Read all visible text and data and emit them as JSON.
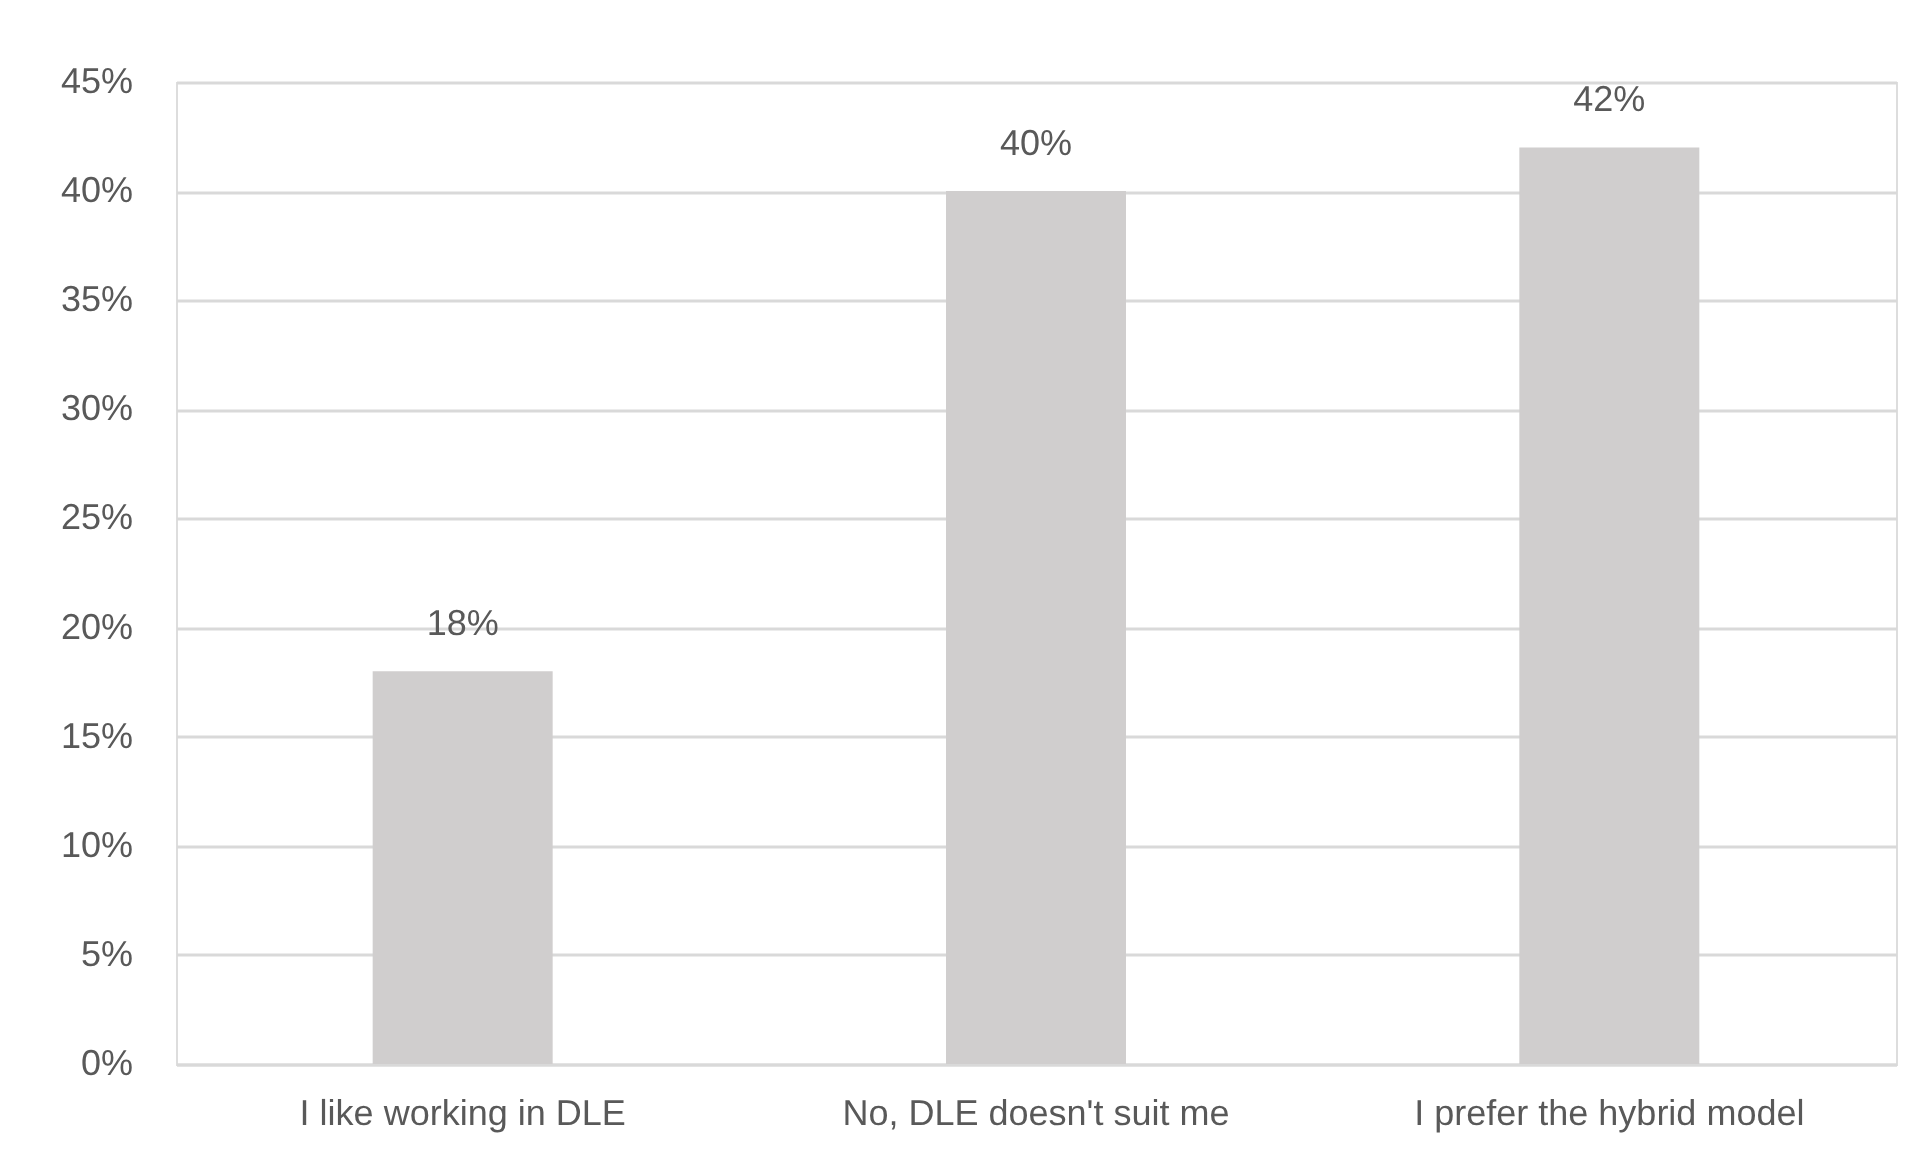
{
  "chart_data": {
    "type": "bar",
    "categories": [
      "I like working in DLE",
      "No, DLE doesn't suit me",
      "I prefer the hybrid model"
    ],
    "values": [
      18,
      40,
      42
    ],
    "color": "#d0cece",
    "value_labels": [
      "18%",
      "40%",
      "42%"
    ],
    "ylim": [
      0,
      45
    ],
    "yticks": [
      {
        "value": 0,
        "label": "0%"
      },
      {
        "value": 5,
        "label": "5%"
      },
      {
        "value": 10,
        "label": "10%"
      },
      {
        "value": 15,
        "label": "15%"
      },
      {
        "value": 20,
        "label": "20%"
      },
      {
        "value": 25,
        "label": "25%"
      },
      {
        "value": 30,
        "label": "30%"
      },
      {
        "value": 35,
        "label": "35%"
      },
      {
        "value": 40,
        "label": "40%"
      },
      {
        "value": 45,
        "label": "45%"
      }
    ],
    "grid": "y"
  }
}
